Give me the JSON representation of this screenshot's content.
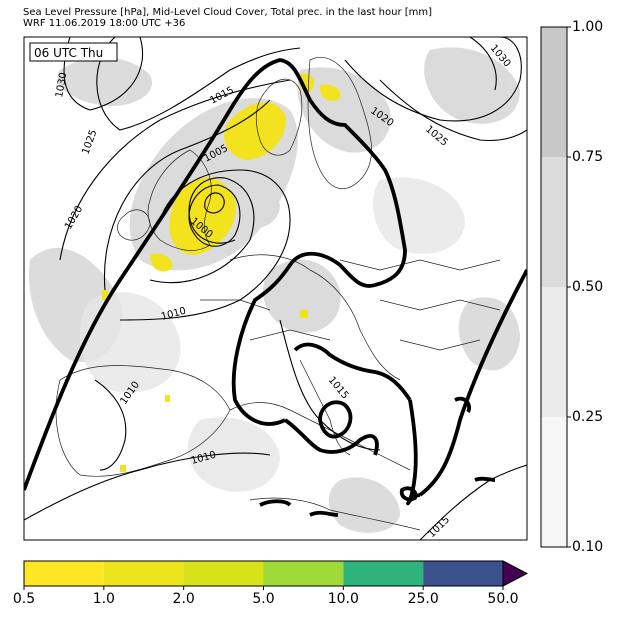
{
  "header": {
    "line1": "Sea Level Pressure [hPa], Mid-Level Cloud Cover, Total prec. in the last hour [mm]",
    "line2": "WRF 11.06.2019 18:00 UTC +36"
  },
  "map": {
    "timestamp_label": "06 UTC Thu",
    "isobar_labels": [
      "1030",
      "1025",
      "1020",
      "1015",
      "1010",
      "1005",
      "1000",
      "1020",
      "1025",
      "1030",
      "1010",
      "1010",
      "1010",
      "1015",
      "1015"
    ]
  },
  "cloud_colorbar": {
    "ticks": [
      "1.00",
      "0.75",
      "0.50",
      "0.25",
      "0.10"
    ],
    "colors": [
      "#c8c8c8",
      "#dcdcdc",
      "#ebebeb",
      "#f7f7f7"
    ]
  },
  "precip_colorbar": {
    "ticks": [
      "0.5",
      "1.0",
      "2.0",
      "5.0",
      "10.0",
      "25.0",
      "50.0"
    ],
    "colors": [
      "#fde725",
      "#ece51b",
      "#d8e219",
      "#a0da39",
      "#2eb37c",
      "#3b518b",
      "#440154"
    ]
  }
}
